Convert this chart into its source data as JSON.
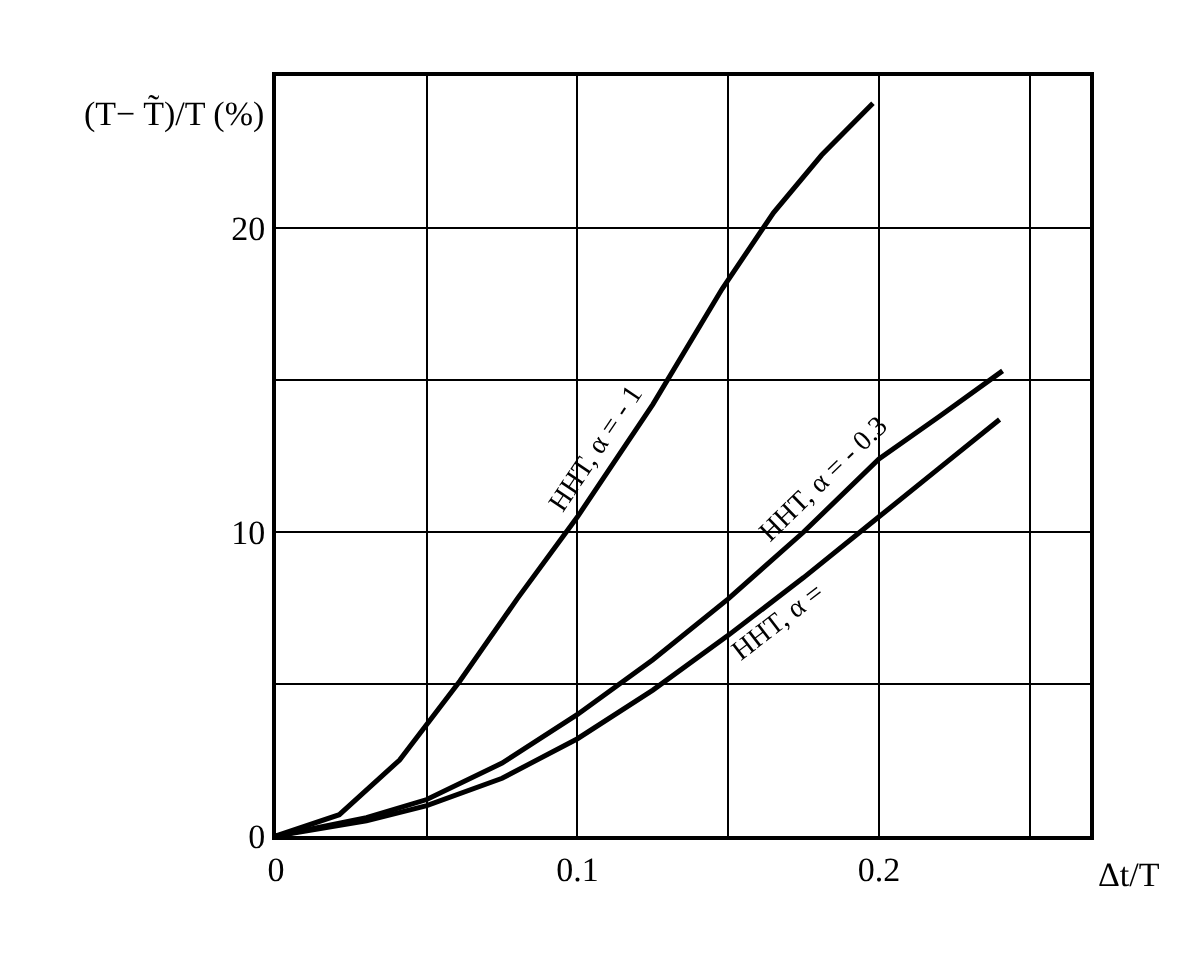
{
  "chart_data": {
    "type": "line",
    "xlabel": "Δt/T",
    "ylabel": "(T− T̃)/T (%)",
    "xlim": [
      0,
      0.27
    ],
    "ylim": [
      0,
      25
    ],
    "xticks": [
      0,
      {
        "value": 0.05,
        "label": null
      },
      0.1,
      {
        "value": 0.15,
        "label": null
      },
      0.2,
      {
        "value": 0.25,
        "label": null
      }
    ],
    "yticks": [
      0,
      {
        "value": 5,
        "label": null
      },
      10,
      {
        "value": 15,
        "label": null
      },
      20,
      {
        "value": 25,
        "label": null
      }
    ],
    "grid": true,
    "legend": false,
    "marker": "none",
    "line_style": "solid",
    "series": [
      {
        "name": "HHT, α = - 1",
        "color": "#000000",
        "x": [
          0,
          0.021,
          0.041,
          0.061,
          0.08,
          0.1,
          0.125,
          0.148,
          0.165,
          0.181,
          0.198
        ],
        "values": [
          0,
          0.7,
          2.5,
          5.1,
          7.8,
          10.5,
          14.2,
          18,
          20.5,
          22.4,
          24.1
        ]
      },
      {
        "name": "HHT, α = - 0.3",
        "color": "#000000",
        "x": [
          0,
          0.03,
          0.05,
          0.075,
          0.1,
          0.125,
          0.15,
          0.175,
          0.2,
          0.22,
          0.241
        ],
        "values": [
          0,
          0.6,
          1.2,
          2.4,
          4.0,
          5.8,
          7.8,
          10,
          12.4,
          13.8,
          15.3
        ]
      },
      {
        "name": "HHT, α =",
        "color": "#000000",
        "x": [
          0,
          0.03,
          0.05,
          0.075,
          0.1,
          0.125,
          0.15,
          0.175,
          0.2,
          0.22,
          0.24
        ],
        "values": [
          0,
          0.5,
          1.0,
          1.9,
          3.2,
          4.8,
          6.6,
          8.5,
          10.5,
          12.1,
          13.7
        ]
      }
    ]
  }
}
